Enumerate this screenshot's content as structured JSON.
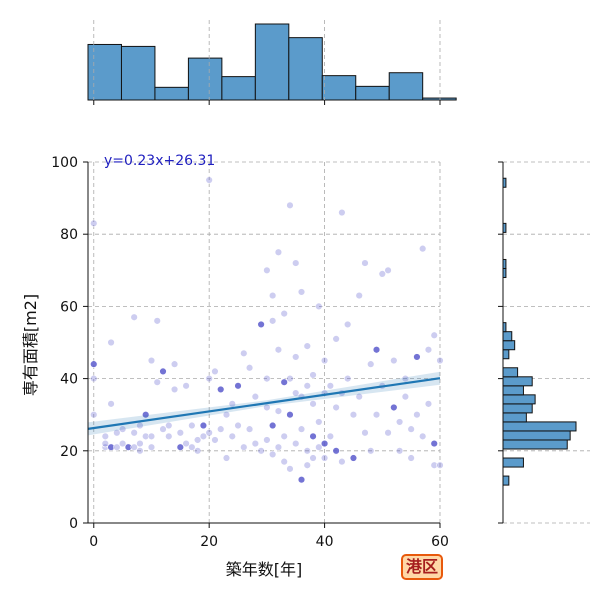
{
  "chart_data": {
    "type": "scatter",
    "title": "",
    "xlabel": "築年数[年]",
    "ylabel": "専有面積[m2]",
    "xlim": [
      -1,
      60
    ],
    "ylim": [
      0,
      100
    ],
    "x_ticks": [
      0,
      20,
      40,
      60
    ],
    "y_ticks": [
      0,
      20,
      40,
      60,
      80,
      100
    ],
    "grid": true,
    "regression": {
      "label": "y=0.23x+26.31",
      "slope": 0.23,
      "intercept": 26.31,
      "color": "#1f77b4"
    },
    "point_color": "#5a5acd",
    "x_hist_counts": [
      57,
      55,
      13,
      43,
      24,
      78,
      64,
      25,
      14,
      28,
      2
    ],
    "y_hist": {
      "edges": [
        0,
        10.5,
        13,
        15.5,
        18,
        20.5,
        23,
        25.5,
        28,
        30.5,
        33,
        35.5,
        38,
        40.5,
        43,
        45.5,
        48,
        50.5,
        53,
        55.5,
        58,
        60.5,
        63,
        65.5,
        68,
        70.5,
        73,
        75.5,
        78,
        80.5,
        83,
        85.5,
        88,
        90.5,
        93,
        95.5,
        98,
        100.5
      ],
      "counts": [
        0,
        2,
        0,
        7,
        0,
        22,
        23,
        25,
        8,
        10,
        11,
        7,
        10,
        5,
        0,
        2,
        4,
        3,
        1,
        0,
        0,
        0,
        0,
        0,
        1,
        1,
        0,
        0,
        0,
        1,
        0,
        0,
        0,
        0,
        1,
        0,
        0
      ]
    },
    "points": [
      [
        0,
        44
      ],
      [
        0,
        40
      ],
      [
        0,
        30
      ],
      [
        0,
        83
      ],
      [
        2,
        21
      ],
      [
        2,
        22
      ],
      [
        2,
        24
      ],
      [
        3,
        21
      ],
      [
        3,
        33
      ],
      [
        3,
        50
      ],
      [
        4,
        25
      ],
      [
        4,
        21
      ],
      [
        5,
        26
      ],
      [
        5,
        22
      ],
      [
        6,
        21
      ],
      [
        7,
        21
      ],
      [
        7,
        25
      ],
      [
        7,
        57
      ],
      [
        8,
        22
      ],
      [
        8,
        20
      ],
      [
        8,
        27
      ],
      [
        9,
        30
      ],
      [
        9,
        24
      ],
      [
        10,
        45
      ],
      [
        10,
        21
      ],
      [
        10,
        24
      ],
      [
        11,
        56
      ],
      [
        11,
        39
      ],
      [
        12,
        42
      ],
      [
        12,
        26
      ],
      [
        13,
        27
      ],
      [
        13,
        24
      ],
      [
        14,
        44
      ],
      [
        14,
        37
      ],
      [
        15,
        25
      ],
      [
        15,
        21
      ],
      [
        16,
        38
      ],
      [
        16,
        22
      ],
      [
        17,
        21
      ],
      [
        17,
        27
      ],
      [
        18,
        20
      ],
      [
        18,
        23
      ],
      [
        19,
        27
      ],
      [
        19,
        24
      ],
      [
        20,
        95
      ],
      [
        20,
        25
      ],
      [
        20,
        40
      ],
      [
        21,
        42
      ],
      [
        21,
        23
      ],
      [
        22,
        37
      ],
      [
        22,
        26
      ],
      [
        23,
        18
      ],
      [
        23,
        30
      ],
      [
        24,
        24
      ],
      [
        24,
        33
      ],
      [
        25,
        27
      ],
      [
        25,
        38
      ],
      [
        26,
        47
      ],
      [
        26,
        21
      ],
      [
        27,
        43
      ],
      [
        27,
        26
      ],
      [
        28,
        35
      ],
      [
        28,
        22
      ],
      [
        29,
        55
      ],
      [
        29,
        20
      ],
      [
        30,
        70
      ],
      [
        30,
        23
      ],
      [
        30,
        32
      ],
      [
        30,
        40
      ],
      [
        31,
        56
      ],
      [
        31,
        27
      ],
      [
        31,
        19
      ],
      [
        31,
        63
      ],
      [
        32,
        75
      ],
      [
        32,
        48
      ],
      [
        32,
        21
      ],
      [
        32,
        31
      ],
      [
        33,
        39
      ],
      [
        33,
        17
      ],
      [
        33,
        58
      ],
      [
        33,
        24
      ],
      [
        34,
        88
      ],
      [
        34,
        40
      ],
      [
        34,
        15
      ],
      [
        34,
        30
      ],
      [
        35,
        72
      ],
      [
        35,
        36
      ],
      [
        35,
        22
      ],
      [
        35,
        46
      ],
      [
        36,
        64
      ],
      [
        36,
        26
      ],
      [
        36,
        12
      ],
      [
        36,
        35
      ],
      [
        37,
        49
      ],
      [
        37,
        20
      ],
      [
        37,
        38
      ],
      [
        37,
        16
      ],
      [
        38,
        41
      ],
      [
        38,
        24
      ],
      [
        38,
        18
      ],
      [
        38,
        33
      ],
      [
        39,
        60
      ],
      [
        39,
        28
      ],
      [
        39,
        21
      ],
      [
        40,
        45
      ],
      [
        40,
        22
      ],
      [
        40,
        36
      ],
      [
        40,
        18
      ],
      [
        41,
        38
      ],
      [
        41,
        24
      ],
      [
        42,
        51
      ],
      [
        42,
        32
      ],
      [
        42,
        20
      ],
      [
        43,
        86
      ],
      [
        43,
        36
      ],
      [
        43,
        17
      ],
      [
        44,
        55
      ],
      [
        44,
        40
      ],
      [
        45,
        30
      ],
      [
        45,
        18
      ],
      [
        46,
        63
      ],
      [
        46,
        35
      ],
      [
        47,
        72
      ],
      [
        47,
        25
      ],
      [
        48,
        44
      ],
      [
        48,
        20
      ],
      [
        49,
        48
      ],
      [
        49,
        30
      ],
      [
        50,
        69
      ],
      [
        50,
        38
      ],
      [
        51,
        70
      ],
      [
        51,
        25
      ],
      [
        52,
        45
      ],
      [
        52,
        32
      ],
      [
        53,
        28
      ],
      [
        53,
        20
      ],
      [
        54,
        40
      ],
      [
        54,
        35
      ],
      [
        55,
        26
      ],
      [
        55,
        18
      ],
      [
        56,
        46
      ],
      [
        56,
        30
      ],
      [
        57,
        76
      ],
      [
        57,
        24
      ],
      [
        58,
        48
      ],
      [
        58,
        33
      ],
      [
        59,
        52
      ],
      [
        59,
        22
      ],
      [
        59,
        16
      ],
      [
        60,
        45
      ],
      [
        60,
        16
      ]
    ]
  },
  "badge": {
    "text": "港区"
  }
}
